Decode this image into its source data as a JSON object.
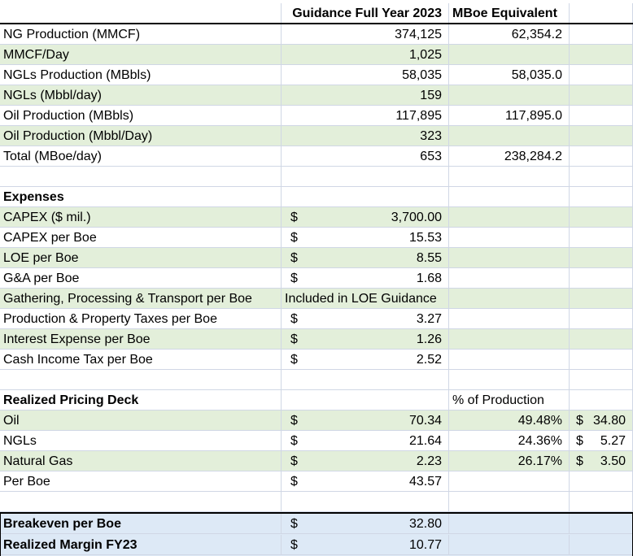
{
  "header": {
    "col_guidance": "Guidance Full Year 2023",
    "col_mboe": "MBoe Equivalent"
  },
  "production": [
    {
      "label": "NG Production (MMCF)",
      "guidance": "374,125",
      "mboe": "62,354.2"
    },
    {
      "label": "MMCF/Day",
      "guidance": "1,025",
      "mboe": ""
    },
    {
      "label": "NGLs Production (MBbls)",
      "guidance": "58,035",
      "mboe": "58,035.0"
    },
    {
      "label": "NGLs (Mbbl/day)",
      "guidance": "159",
      "mboe": ""
    },
    {
      "label": "Oil Production (MBbls)",
      "guidance": "117,895",
      "mboe": "117,895.0"
    },
    {
      "label": "Oil Production (Mbbl/Day)",
      "guidance": "323",
      "mboe": ""
    },
    {
      "label": "Total (MBoe/day)",
      "guidance": "653",
      "mboe": "238,284.2"
    }
  ],
  "expenses": {
    "title": "Expenses",
    "rows": [
      {
        "label": "CAPEX ($ mil.)",
        "currency": "$",
        "value": "3,700.00"
      },
      {
        "label": "CAPEX per Boe",
        "currency": "$",
        "value": "15.53"
      },
      {
        "label": "LOE per Boe",
        "currency": "$",
        "value": "8.55"
      },
      {
        "label": "G&A per Boe",
        "currency": "$",
        "value": "1.68"
      },
      {
        "label": "Gathering, Processing & Transport per Boe",
        "currency": "",
        "value": "",
        "note": "Included in LOE Guidance"
      },
      {
        "label": "Production & Property Taxes per Boe",
        "currency": "$",
        "value": "3.27"
      },
      {
        "label": "Interest Expense per Boe",
        "currency": "$",
        "value": "1.26"
      },
      {
        "label": "Cash Income Tax per Boe",
        "currency": "$",
        "value": "2.52"
      }
    ]
  },
  "pricing": {
    "title": "Realized Pricing Deck",
    "pct_header": "% of Production",
    "rows": [
      {
        "label": "Oil",
        "currency": "$",
        "value": "70.34",
        "pct": "49.48%",
        "wcur": "$",
        "weighted": "34.80"
      },
      {
        "label": "NGLs",
        "currency": "$",
        "value": "21.64",
        "pct": "24.36%",
        "wcur": "$",
        "weighted": "5.27"
      },
      {
        "label": "Natural Gas",
        "currency": "$",
        "value": "2.23",
        "pct": "26.17%",
        "wcur": "$",
        "weighted": "3.50"
      },
      {
        "label": "Per Boe",
        "currency": "$",
        "value": "43.57",
        "pct": "",
        "wcur": "",
        "weighted": ""
      }
    ]
  },
  "summary": [
    {
      "label": "Breakeven per Boe",
      "currency": "$",
      "value": "32.80"
    },
    {
      "label": "Realized Margin FY23",
      "currency": "$",
      "value": "10.77"
    }
  ]
}
